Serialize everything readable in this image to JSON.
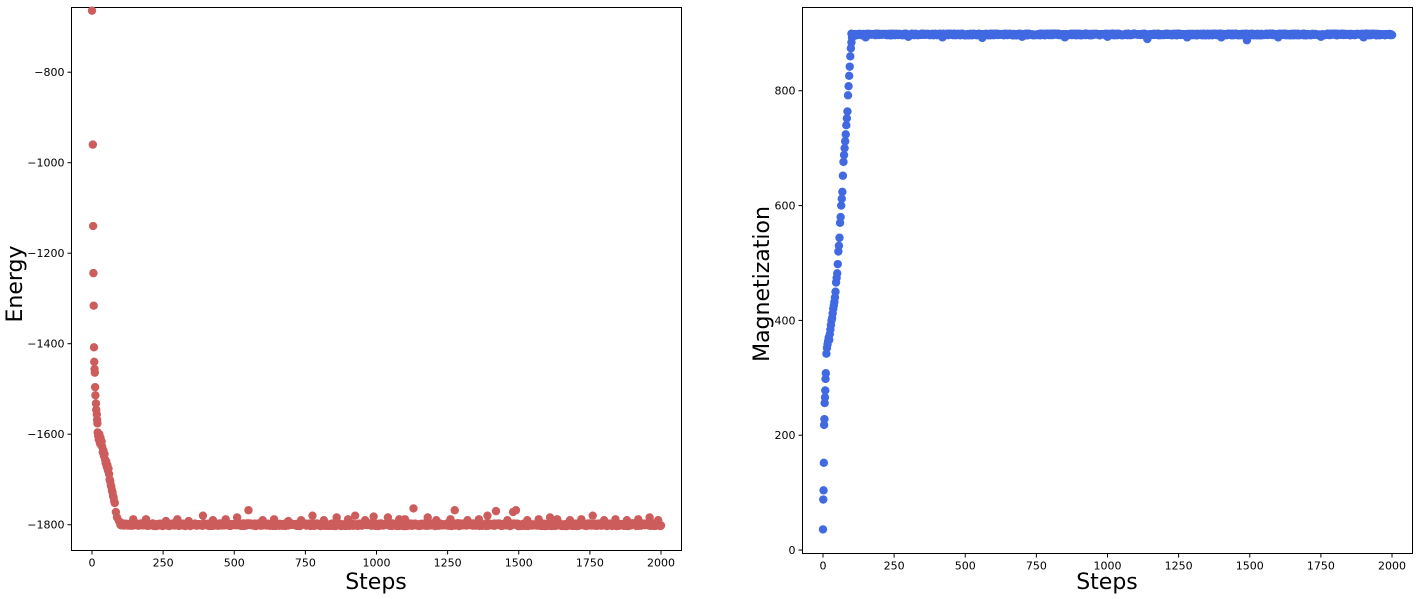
{
  "chart_data": [
    {
      "type": "scatter",
      "title": "",
      "xlabel": "Steps",
      "ylabel": "Energy",
      "xlim": [
        -72,
        2072
      ],
      "ylim": [
        -1857,
        -657
      ],
      "xticks": [
        0,
        250,
        500,
        750,
        1000,
        1250,
        1500,
        1750,
        2000
      ],
      "yticks": [
        -1800,
        -1600,
        -1400,
        -1200,
        -1000,
        -800
      ],
      "ytick_labels": [
        "−1800",
        "−1600",
        "−1400",
        "−1200",
        "−1000",
        "−800"
      ],
      "color": "#cd5c5c",
      "grid": false,
      "legend": "none",
      "points": [
        [
          0,
          -664
        ],
        [
          3,
          -960
        ],
        [
          4,
          -1140
        ],
        [
          5,
          -1244
        ],
        [
          6,
          -1316
        ],
        [
          7,
          -1408
        ],
        [
          8,
          -1440
        ],
        [
          9,
          -1456
        ],
        [
          10,
          -1464
        ],
        [
          11,
          -1496
        ],
        [
          12,
          -1514
        ],
        [
          14,
          -1532
        ],
        [
          15,
          -1546
        ],
        [
          17,
          -1556
        ],
        [
          18,
          -1568
        ],
        [
          19,
          -1576
        ],
        [
          20,
          -1596
        ],
        [
          22,
          -1604
        ],
        [
          24,
          -1612
        ],
        [
          26,
          -1600
        ],
        [
          28,
          -1620
        ],
        [
          30,
          -1608
        ],
        [
          32,
          -1624
        ],
        [
          34,
          -1616
        ],
        [
          36,
          -1628
        ],
        [
          38,
          -1640
        ],
        [
          40,
          -1636
        ],
        [
          42,
          -1648
        ],
        [
          44,
          -1644
        ],
        [
          46,
          -1656
        ],
        [
          48,
          -1664
        ],
        [
          50,
          -1660
        ],
        [
          52,
          -1672
        ],
        [
          54,
          -1668
        ],
        [
          56,
          -1680
        ],
        [
          58,
          -1676
        ],
        [
          60,
          -1688
        ],
        [
          62,
          -1700
        ],
        [
          64,
          -1704
        ],
        [
          66,
          -1712
        ],
        [
          68,
          -1716
        ],
        [
          70,
          -1724
        ],
        [
          72,
          -1728
        ],
        [
          74,
          -1736
        ],
        [
          76,
          -1740
        ],
        [
          78,
          -1748
        ],
        [
          80,
          -1752
        ],
        [
          84,
          -1772
        ],
        [
          88,
          -1784
        ],
        [
          95,
          -1792
        ],
        [
          100,
          -1800
        ],
        [
          145,
          -1788
        ],
        [
          190,
          -1788
        ],
        [
          260,
          -1792
        ],
        [
          300,
          -1788
        ],
        [
          340,
          -1792
        ],
        [
          390,
          -1780
        ],
        [
          425,
          -1790
        ],
        [
          470,
          -1788
        ],
        [
          510,
          -1784
        ],
        [
          550,
          -1768
        ],
        [
          600,
          -1790
        ],
        [
          640,
          -1788
        ],
        [
          690,
          -1792
        ],
        [
          735,
          -1790
        ],
        [
          775,
          -1780
        ],
        [
          815,
          -1790
        ],
        [
          860,
          -1784
        ],
        [
          900,
          -1788
        ],
        [
          925,
          -1780
        ],
        [
          960,
          -1790
        ],
        [
          990,
          -1782
        ],
        [
          1040,
          -1784
        ],
        [
          1080,
          -1788
        ],
        [
          1100,
          -1788
        ],
        [
          1130,
          -1764
        ],
        [
          1180,
          -1784
        ],
        [
          1210,
          -1790
        ],
        [
          1260,
          -1788
        ],
        [
          1275,
          -1768
        ],
        [
          1320,
          -1790
        ],
        [
          1360,
          -1788
        ],
        [
          1390,
          -1780
        ],
        [
          1420,
          -1770
        ],
        [
          1460,
          -1790
        ],
        [
          1480,
          -1772
        ],
        [
          1490,
          -1768
        ],
        [
          1530,
          -1790
        ],
        [
          1570,
          -1788
        ],
        [
          1610,
          -1784
        ],
        [
          1635,
          -1788
        ],
        [
          1680,
          -1790
        ],
        [
          1720,
          -1788
        ],
        [
          1760,
          -1780
        ],
        [
          1800,
          -1790
        ],
        [
          1840,
          -1788
        ],
        [
          1880,
          -1790
        ],
        [
          1920,
          -1788
        ],
        [
          1960,
          -1784
        ],
        [
          1990,
          -1790
        ]
      ],
      "baseline_band": {
        "x": [
          100,
          2000
        ],
        "y": -1800,
        "jitter": 6
      }
    },
    {
      "type": "scatter",
      "title": "",
      "xlabel": "Steps",
      "ylabel": "Magnetization",
      "xlim": [
        -72,
        2072
      ],
      "ylim": [
        -6,
        945
      ],
      "xticks": [
        0,
        250,
        500,
        750,
        1000,
        1250,
        1500,
        1750,
        2000
      ],
      "yticks": [
        0,
        200,
        400,
        600,
        800
      ],
      "ytick_labels": [
        "0",
        "200",
        "400",
        "600",
        "800"
      ],
      "color": "#4169e1",
      "grid": false,
      "legend": "none",
      "points": [
        [
          0,
          36
        ],
        [
          1,
          88
        ],
        [
          2,
          104
        ],
        [
          3,
          152
        ],
        [
          4,
          218
        ],
        [
          5,
          228
        ],
        [
          6,
          256
        ],
        [
          7,
          266
        ],
        [
          8,
          278
        ],
        [
          9,
          298
        ],
        [
          10,
          308
        ],
        [
          12,
          342
        ],
        [
          14,
          352
        ],
        [
          16,
          358
        ],
        [
          18,
          364
        ],
        [
          20,
          370
        ],
        [
          22,
          366
        ],
        [
          24,
          376
        ],
        [
          26,
          384
        ],
        [
          28,
          392
        ],
        [
          30,
          400
        ],
        [
          32,
          404
        ],
        [
          34,
          412
        ],
        [
          36,
          420
        ],
        [
          38,
          426
        ],
        [
          40,
          432
        ],
        [
          42,
          440
        ],
        [
          44,
          450
        ],
        [
          46,
          466
        ],
        [
          48,
          474
        ],
        [
          50,
          482
        ],
        [
          52,
          498
        ],
        [
          54,
          520
        ],
        [
          56,
          530
        ],
        [
          58,
          544
        ],
        [
          60,
          570
        ],
        [
          62,
          580
        ],
        [
          64,
          600
        ],
        [
          66,
          612
        ],
        [
          68,
          624
        ],
        [
          70,
          652
        ],
        [
          72,
          676
        ],
        [
          74,
          688
        ],
        [
          76,
          700
        ],
        [
          78,
          712
        ],
        [
          80,
          724
        ],
        [
          82,
          740
        ],
        [
          84,
          752
        ],
        [
          86,
          764
        ],
        [
          88,
          792
        ],
        [
          90,
          808
        ],
        [
          92,
          826
        ],
        [
          94,
          842
        ],
        [
          96,
          860
        ],
        [
          98,
          874
        ],
        [
          100,
          884
        ],
        [
          102,
          892
        ],
        [
          110,
          896
        ],
        [
          150,
          893
        ],
        [
          300,
          894
        ],
        [
          420,
          893
        ],
        [
          560,
          892
        ],
        [
          700,
          894
        ],
        [
          850,
          893
        ],
        [
          1000,
          894
        ],
        [
          1140,
          890
        ],
        [
          1280,
          893
        ],
        [
          1400,
          893
        ],
        [
          1490,
          888
        ],
        [
          1600,
          893
        ],
        [
          1750,
          894
        ],
        [
          1900,
          893
        ],
        [
          2000,
          897
        ]
      ],
      "baseline_band": {
        "x": [
          100,
          2000
        ],
        "y": 898,
        "jitter": 3
      }
    }
  ]
}
